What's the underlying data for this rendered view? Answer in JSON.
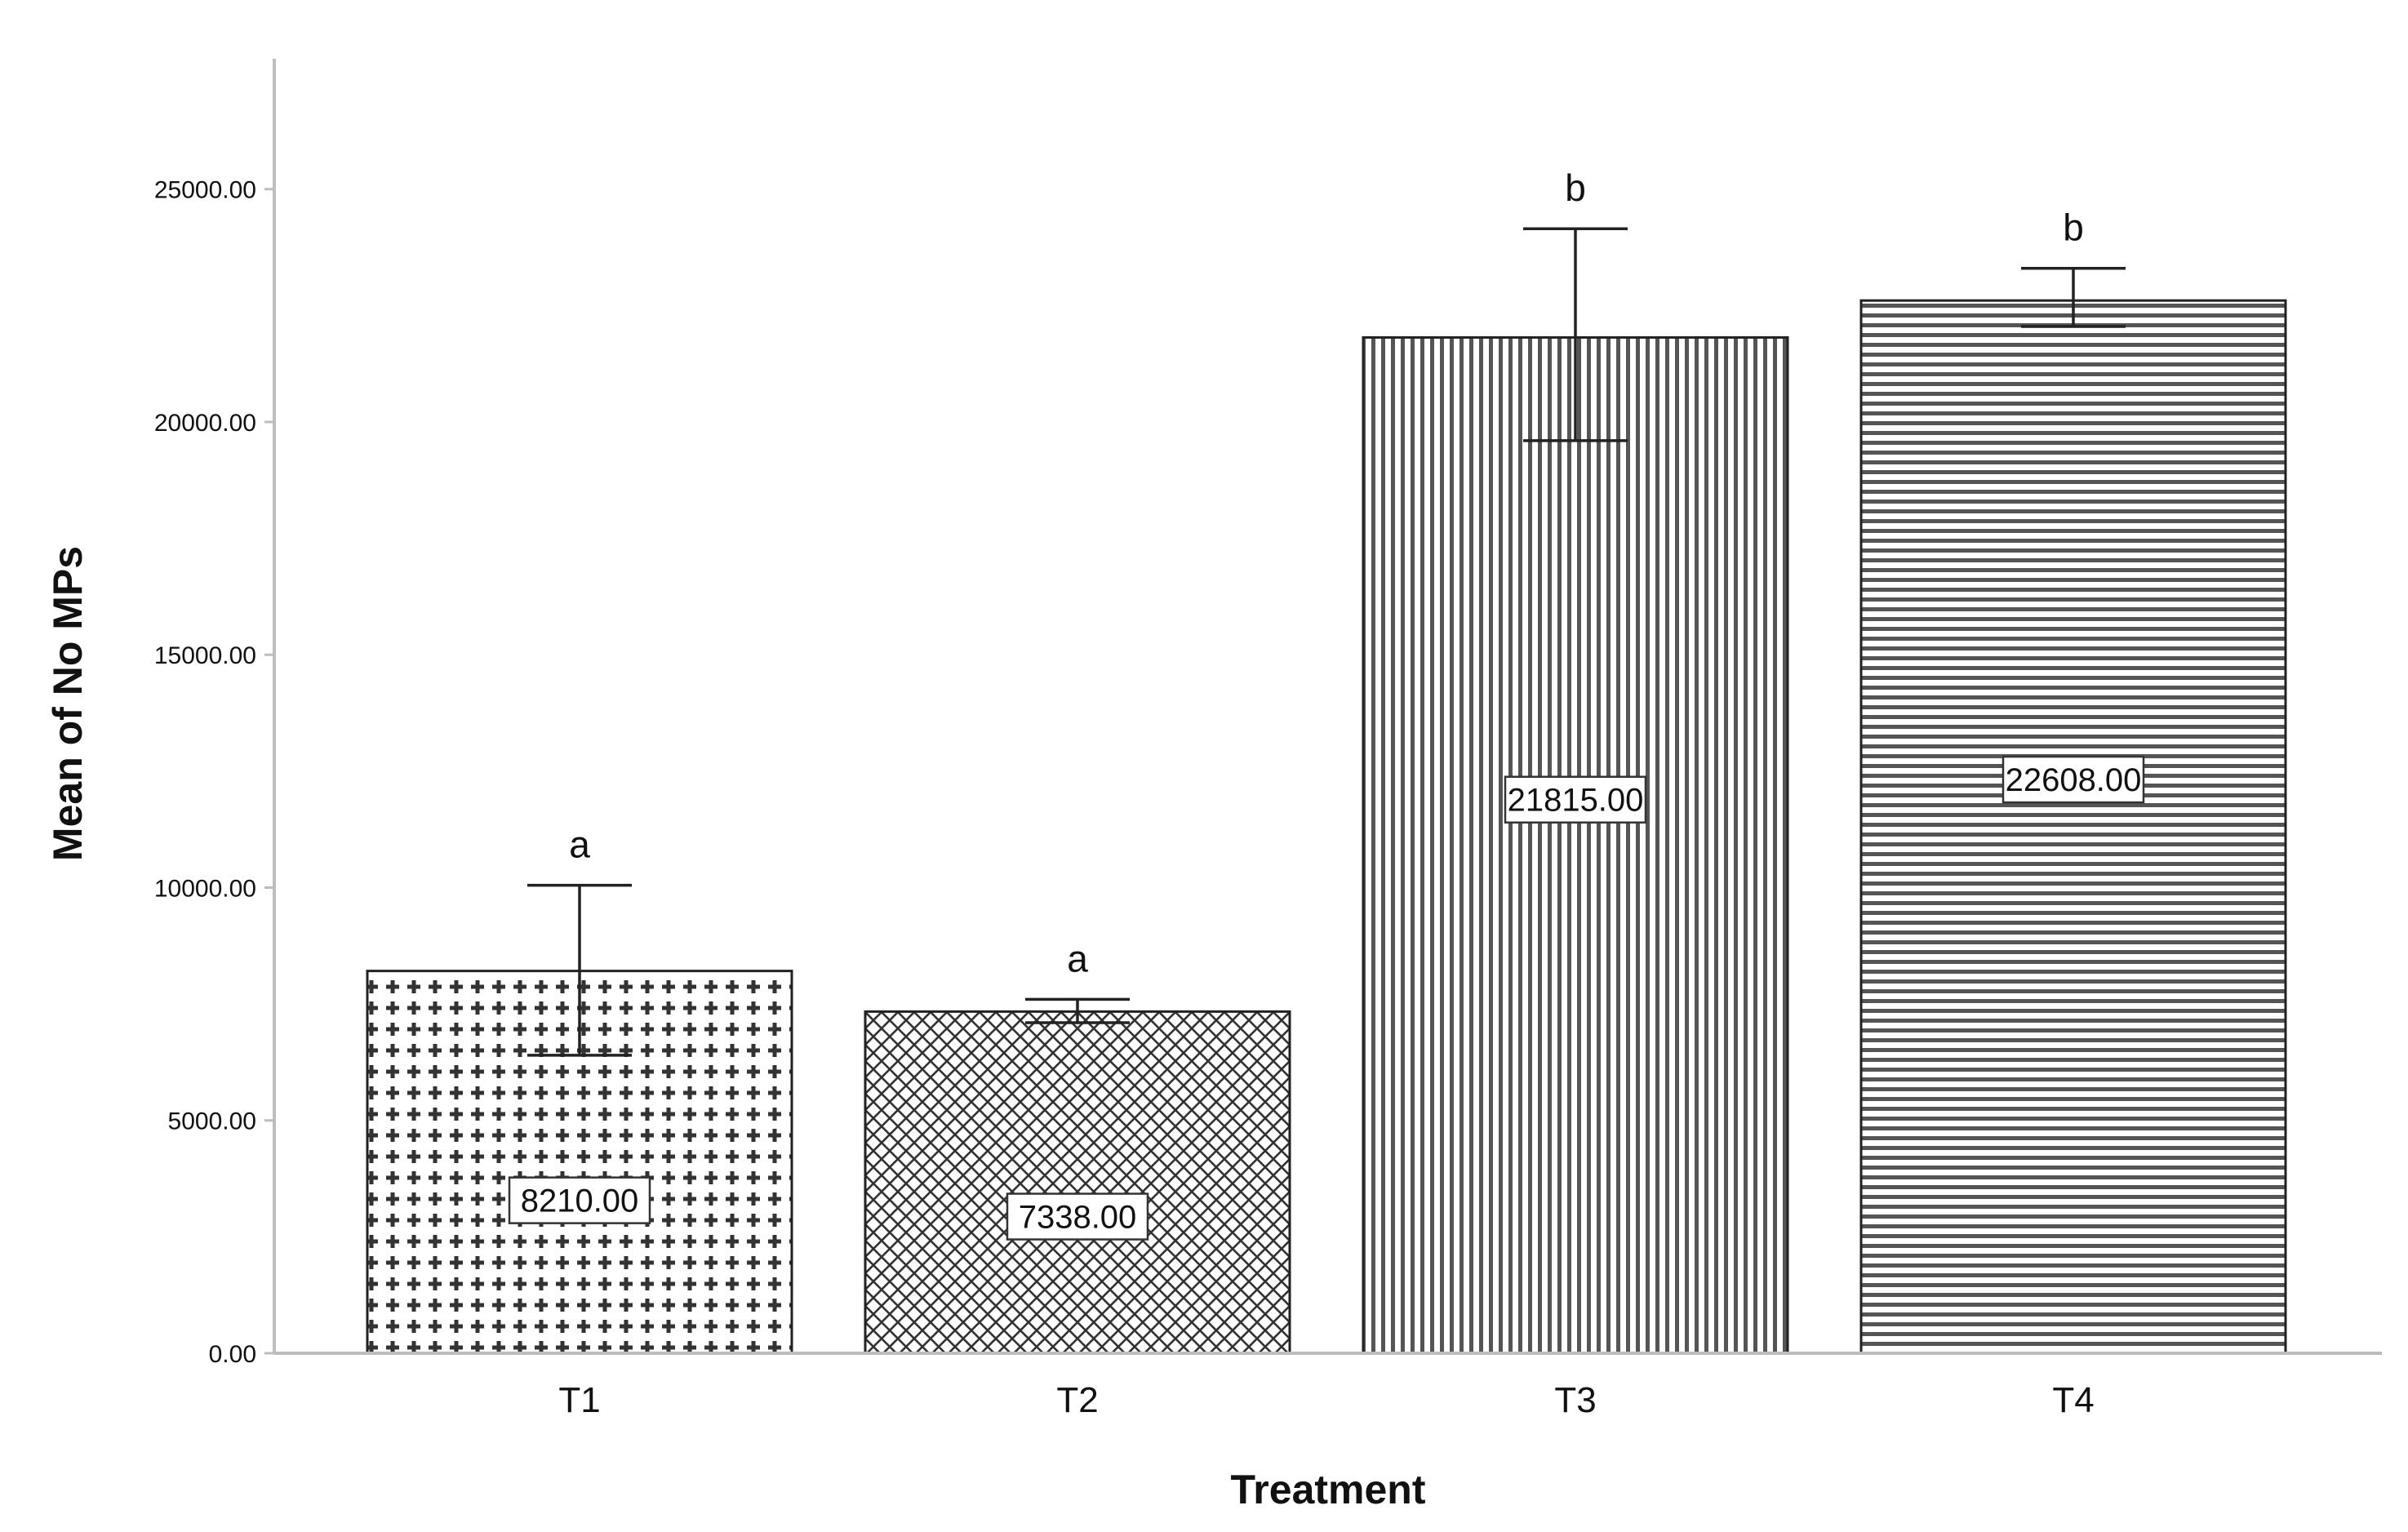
{
  "chart_data": {
    "type": "bar",
    "categories": [
      "T1",
      "T2",
      "T3",
      "T4"
    ],
    "values": [
      8210.0,
      7338.0,
      21815.0,
      22608.0
    ],
    "value_labels": [
      "8210.00",
      "7338.00",
      "21815.00",
      "22608.00"
    ],
    "error_bars": [
      {
        "low": 6400,
        "high": 10050
      },
      {
        "low": 7100,
        "high": 7600
      },
      {
        "low": 19600,
        "high": 24150
      },
      {
        "low": 22050,
        "high": 23300
      }
    ],
    "significance_letters": [
      "a",
      "a",
      "b",
      "b"
    ],
    "patterns": [
      "dotted-cross",
      "crosshatch",
      "vertical-lines",
      "horizontal-lines"
    ],
    "title": "",
    "xlabel": "Treatment",
    "ylabel": "Mean of No MPs",
    "ylim": [
      0,
      27800
    ],
    "yticks": [
      0,
      5000,
      10000,
      15000,
      20000,
      25000
    ],
    "ytick_labels": [
      "0.00",
      "5000.00",
      "10000.00",
      "15000.00",
      "20000.00",
      "25000.00"
    ],
    "grid": false,
    "legend": "none",
    "colors": {
      "bar_fill": "#ffffff",
      "pattern": "#333333",
      "axis": "#bbbbbb",
      "text": "#111111"
    }
  }
}
